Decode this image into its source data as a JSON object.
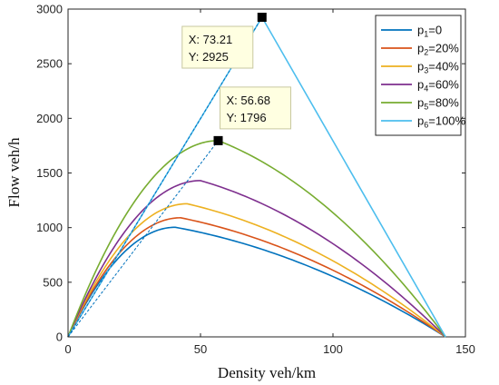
{
  "chart_data": {
    "type": "line",
    "xlabel": "Density veh/km",
    "ylabel": "Flow veh/h",
    "xlim": [
      0,
      150
    ],
    "ylim": [
      0,
      3000
    ],
    "xticks": [
      0,
      50,
      100,
      150
    ],
    "yticks": [
      0,
      500,
      1000,
      1500,
      2000,
      2500,
      3000
    ],
    "jam_density": 142.5,
    "series": [
      {
        "name": "p1=0",
        "sub": "1",
        "rest": "=0",
        "color": "#0072BD",
        "peak_x": 40.5,
        "peak_y": 1003
      },
      {
        "name": "p2=20%",
        "sub": "2",
        "rest": "=20%",
        "color": "#D95319",
        "peak_x": 42.5,
        "peak_y": 1090
      },
      {
        "name": "p3=40%",
        "sub": "3",
        "rest": "=40%",
        "color": "#EDB120",
        "peak_x": 45.0,
        "peak_y": 1218
      },
      {
        "name": "p4=60%",
        "sub": "4",
        "rest": "=60%",
        "color": "#7E2F8E",
        "peak_x": 50.0,
        "peak_y": 1430
      },
      {
        "name": "p5=80%",
        "sub": "5",
        "rest": "=80%",
        "color": "#77AC30",
        "peak_x": 56.68,
        "peak_y": 1796
      },
      {
        "name": "p6=100%",
        "sub": "6",
        "rest": "=100%",
        "color": "#4DBEEE",
        "peak_x": 73.21,
        "peak_y": 2925
      }
    ],
    "datatips": [
      {
        "x": 73.21,
        "y": 2925,
        "x_label": "X: 73.21",
        "y_label": "Y: 2925"
      },
      {
        "x": 56.68,
        "y": 1796,
        "x_label": "X: 56.68",
        "y_label": "Y: 1796"
      }
    ],
    "grid": false,
    "legend_position": "top-right",
    "colors": {
      "axis": "#262626",
      "dashed_line": "#0072BD",
      "tip_background": "#FFFFE1",
      "tip_border": "#C8C8A0"
    }
  }
}
